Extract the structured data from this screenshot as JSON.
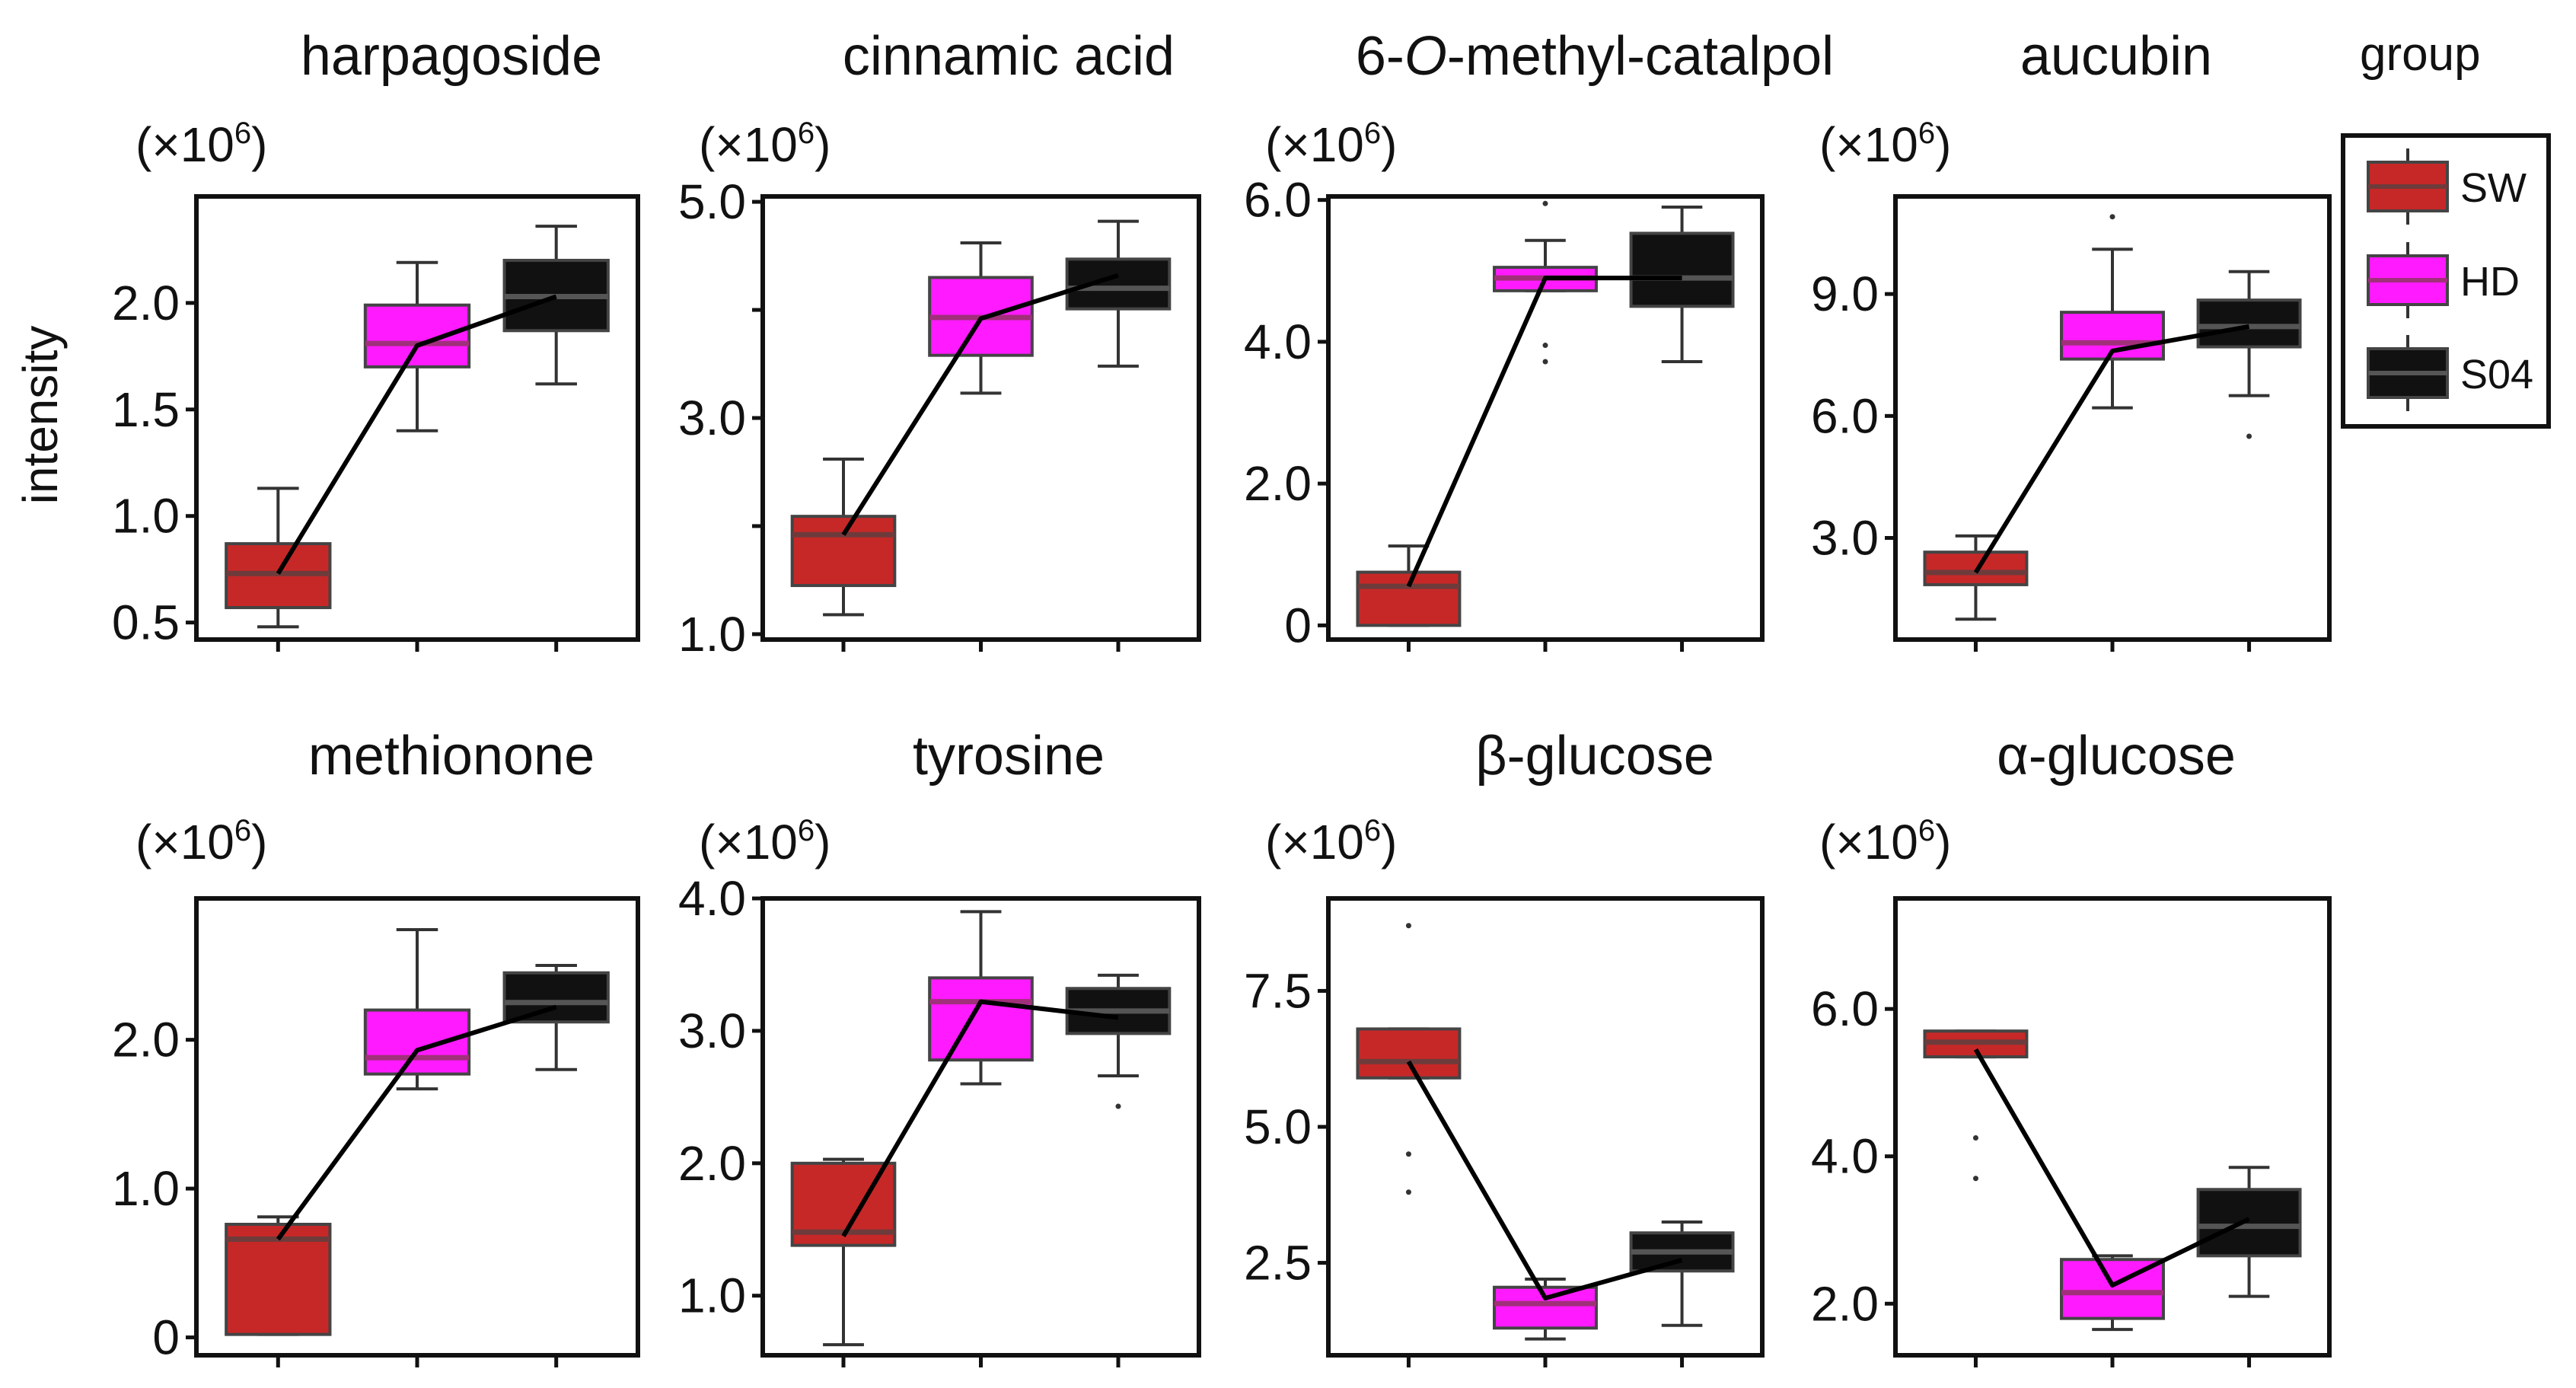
{
  "figure": {
    "ylabel": "intensity",
    "multiplier_prefix": "(×10",
    "multiplier_exp": "6",
    "multiplier_suffix": ")"
  },
  "legend": {
    "title": "group",
    "entries": [
      {
        "label": "SW",
        "color": "#c62828"
      },
      {
        "label": "HD",
        "color": "#ff1aff"
      },
      {
        "label": "S04",
        "color": "#111111"
      }
    ]
  },
  "chart_data": [
    {
      "type": "box",
      "title": "harpagoside",
      "title_italic_part": "",
      "ylim": [
        0.42,
        2.5
      ],
      "yticks": [
        0.5,
        1.0,
        1.5,
        2.0
      ],
      "ytick_labels": [
        "0.5",
        "1.0",
        "1.5",
        "2.0"
      ],
      "multiplier": "×10^6",
      "groups": [
        "SW",
        "HD",
        "S04"
      ],
      "boxes": [
        {
          "group": "SW",
          "whisker_low": 0.48,
          "q1": 0.57,
          "median": 0.73,
          "q3": 0.87,
          "whisker_high": 1.13,
          "mean": 0.73,
          "outliers": []
        },
        {
          "group": "HD",
          "whisker_low": 1.4,
          "q1": 1.7,
          "median": 1.81,
          "q3": 1.99,
          "whisker_high": 2.19,
          "mean": 1.8,
          "outliers": []
        },
        {
          "group": "S04",
          "whisker_low": 1.62,
          "q1": 1.87,
          "median": 2.03,
          "q3": 2.2,
          "whisker_high": 2.36,
          "mean": 2.03,
          "outliers": []
        }
      ]
    },
    {
      "type": "box",
      "title": "cinnamic acid",
      "title_italic_part": "",
      "ylim": [
        0.95,
        5.05
      ],
      "yticks": [
        1.0,
        3.0,
        5.0
      ],
      "ytick_labels": [
        "1.0",
        "3.0",
        "5.0"
      ],
      "minor_yticks": [
        2.0,
        4.0
      ],
      "multiplier": "×10^6",
      "groups": [
        "SW",
        "HD",
        "S04"
      ],
      "boxes": [
        {
          "group": "SW",
          "whisker_low": 1.18,
          "q1": 1.45,
          "median": 1.92,
          "q3": 2.09,
          "whisker_high": 2.62,
          "mean": 1.92,
          "outliers": []
        },
        {
          "group": "HD",
          "whisker_low": 3.23,
          "q1": 3.58,
          "median": 3.93,
          "q3": 4.3,
          "whisker_high": 4.62,
          "mean": 3.92,
          "outliers": []
        },
        {
          "group": "S04",
          "whisker_low": 3.48,
          "q1": 4.01,
          "median": 4.2,
          "q3": 4.47,
          "whisker_high": 4.82,
          "mean": 4.32,
          "outliers": []
        }
      ]
    },
    {
      "type": "box",
      "title": "6-O-methyl-catalpol",
      "title_italic_part": "O",
      "ylim": [
        -0.2,
        6.05
      ],
      "yticks": [
        0,
        2.0,
        4.0,
        6.0
      ],
      "ytick_labels": [
        "0",
        "2.0",
        "4.0",
        "6.0"
      ],
      "multiplier": "×10^6",
      "groups": [
        "SW",
        "HD",
        "S04"
      ],
      "boxes": [
        {
          "group": "SW",
          "whisker_low": 0.0,
          "q1": 0.0,
          "median": 0.55,
          "q3": 0.75,
          "whisker_high": 1.12,
          "mean": 0.55,
          "outliers": []
        },
        {
          "group": "HD",
          "whisker_low": 4.72,
          "q1": 4.72,
          "median": 4.9,
          "q3": 5.05,
          "whisker_high": 5.43,
          "mean": 4.9,
          "outliers": [
            5.95,
            3.95,
            3.72
          ]
        },
        {
          "group": "S04",
          "whisker_low": 3.72,
          "q1": 4.5,
          "median": 4.9,
          "q3": 5.53,
          "whisker_high": 5.9,
          "mean": 4.9,
          "outliers": []
        }
      ]
    },
    {
      "type": "box",
      "title": "aucubin",
      "title_italic_part": "",
      "ylim": [
        0.5,
        11.4
      ],
      "yticks": [
        3.0,
        6.0,
        9.0
      ],
      "ytick_labels": [
        "3.0",
        "6.0",
        "9.0"
      ],
      "multiplier": "×10^6",
      "groups": [
        "SW",
        "HD",
        "S04"
      ],
      "boxes": [
        {
          "group": "SW",
          "whisker_low": 1.0,
          "q1": 1.85,
          "median": 2.15,
          "q3": 2.65,
          "whisker_high": 3.05,
          "mean": 2.15,
          "outliers": []
        },
        {
          "group": "HD",
          "whisker_low": 6.2,
          "q1": 7.4,
          "median": 7.8,
          "q3": 8.55,
          "whisker_high": 10.1,
          "mean": 7.6,
          "outliers": [
            10.9
          ]
        },
        {
          "group": "S04",
          "whisker_low": 6.5,
          "q1": 7.7,
          "median": 8.2,
          "q3": 8.85,
          "whisker_high": 9.55,
          "mean": 8.2,
          "outliers": [
            5.5
          ]
        }
      ]
    },
    {
      "type": "box",
      "title": "methionone",
      "title_italic_part": "",
      "ylim": [
        -0.12,
        2.95
      ],
      "yticks": [
        0,
        1.0,
        2.0
      ],
      "ytick_labels": [
        "0",
        "1.0",
        "2.0"
      ],
      "multiplier": "×10^6",
      "groups": [
        "SW",
        "HD",
        "S04"
      ],
      "boxes": [
        {
          "group": "SW",
          "whisker_low": 0.02,
          "q1": 0.02,
          "median": 0.66,
          "q3": 0.76,
          "whisker_high": 0.81,
          "mean": 0.66,
          "outliers": []
        },
        {
          "group": "HD",
          "whisker_low": 1.67,
          "q1": 1.77,
          "median": 1.88,
          "q3": 2.2,
          "whisker_high": 2.74,
          "mean": 1.93,
          "outliers": []
        },
        {
          "group": "S04",
          "whisker_low": 1.8,
          "q1": 2.12,
          "median": 2.25,
          "q3": 2.45,
          "whisker_high": 2.5,
          "mean": 2.22,
          "outliers": []
        }
      ]
    },
    {
      "type": "box",
      "title": "tyrosine",
      "title_italic_part": "",
      "ylim": [
        0.55,
        4.0
      ],
      "yticks": [
        1.0,
        2.0,
        3.0,
        4.0
      ],
      "ytick_labels": [
        "1.0",
        "2.0",
        "3.0",
        "4.0"
      ],
      "multiplier": "×10^6",
      "groups": [
        "SW",
        "HD",
        "S04"
      ],
      "boxes": [
        {
          "group": "SW",
          "whisker_low": 0.63,
          "q1": 1.38,
          "median": 1.48,
          "q3": 2.0,
          "whisker_high": 2.03,
          "mean": 1.45,
          "outliers": []
        },
        {
          "group": "HD",
          "whisker_low": 2.6,
          "q1": 2.78,
          "median": 3.22,
          "q3": 3.4,
          "whisker_high": 3.9,
          "mean": 3.22,
          "outliers": []
        },
        {
          "group": "S04",
          "whisker_low": 2.66,
          "q1": 2.98,
          "median": 3.15,
          "q3": 3.32,
          "whisker_high": 3.42,
          "mean": 3.1,
          "outliers": [
            2.43
          ]
        }
      ]
    },
    {
      "type": "box",
      "title": "β-glucose",
      "title_italic_part": "",
      "ylim": [
        0.8,
        9.2
      ],
      "yticks": [
        2.5,
        5.0,
        7.5
      ],
      "ytick_labels": [
        "2.5",
        "5.0",
        "7.5"
      ],
      "multiplier": "×10^6",
      "groups": [
        "SW",
        "HD",
        "S04"
      ],
      "boxes": [
        {
          "group": "SW",
          "whisker_low": 5.9,
          "q1": 5.9,
          "median": 6.2,
          "q3": 6.8,
          "whisker_high": 6.8,
          "mean": 6.2,
          "outliers": [
            8.7,
            4.5,
            3.8
          ]
        },
        {
          "group": "HD",
          "whisker_low": 1.1,
          "q1": 1.3,
          "median": 1.75,
          "q3": 2.05,
          "whisker_high": 2.2,
          "mean": 1.85,
          "outliers": []
        },
        {
          "group": "S04",
          "whisker_low": 1.35,
          "q1": 2.35,
          "median": 2.7,
          "q3": 3.05,
          "whisker_high": 3.25,
          "mean": 2.55,
          "outliers": []
        }
      ]
    },
    {
      "type": "box",
      "title": "α-glucose",
      "title_italic_part": "",
      "ylim": [
        1.3,
        7.5
      ],
      "yticks": [
        2.0,
        4.0,
        6.0
      ],
      "ytick_labels": [
        "2.0",
        "4.0",
        "6.0"
      ],
      "multiplier": "×10^6",
      "groups": [
        "SW",
        "HD",
        "S04"
      ],
      "boxes": [
        {
          "group": "SW",
          "whisker_low": 5.35,
          "q1": 5.35,
          "median": 5.55,
          "q3": 5.7,
          "whisker_high": 5.7,
          "mean": 5.45,
          "outliers": [
            4.25,
            3.7
          ]
        },
        {
          "group": "HD",
          "whisker_low": 1.65,
          "q1": 1.8,
          "median": 2.15,
          "q3": 2.6,
          "whisker_high": 2.65,
          "mean": 2.25,
          "outliers": []
        },
        {
          "group": "S04",
          "whisker_low": 2.1,
          "q1": 2.65,
          "median": 3.05,
          "q3": 3.55,
          "whisker_high": 3.85,
          "mean": 3.15,
          "outliers": []
        }
      ]
    }
  ]
}
